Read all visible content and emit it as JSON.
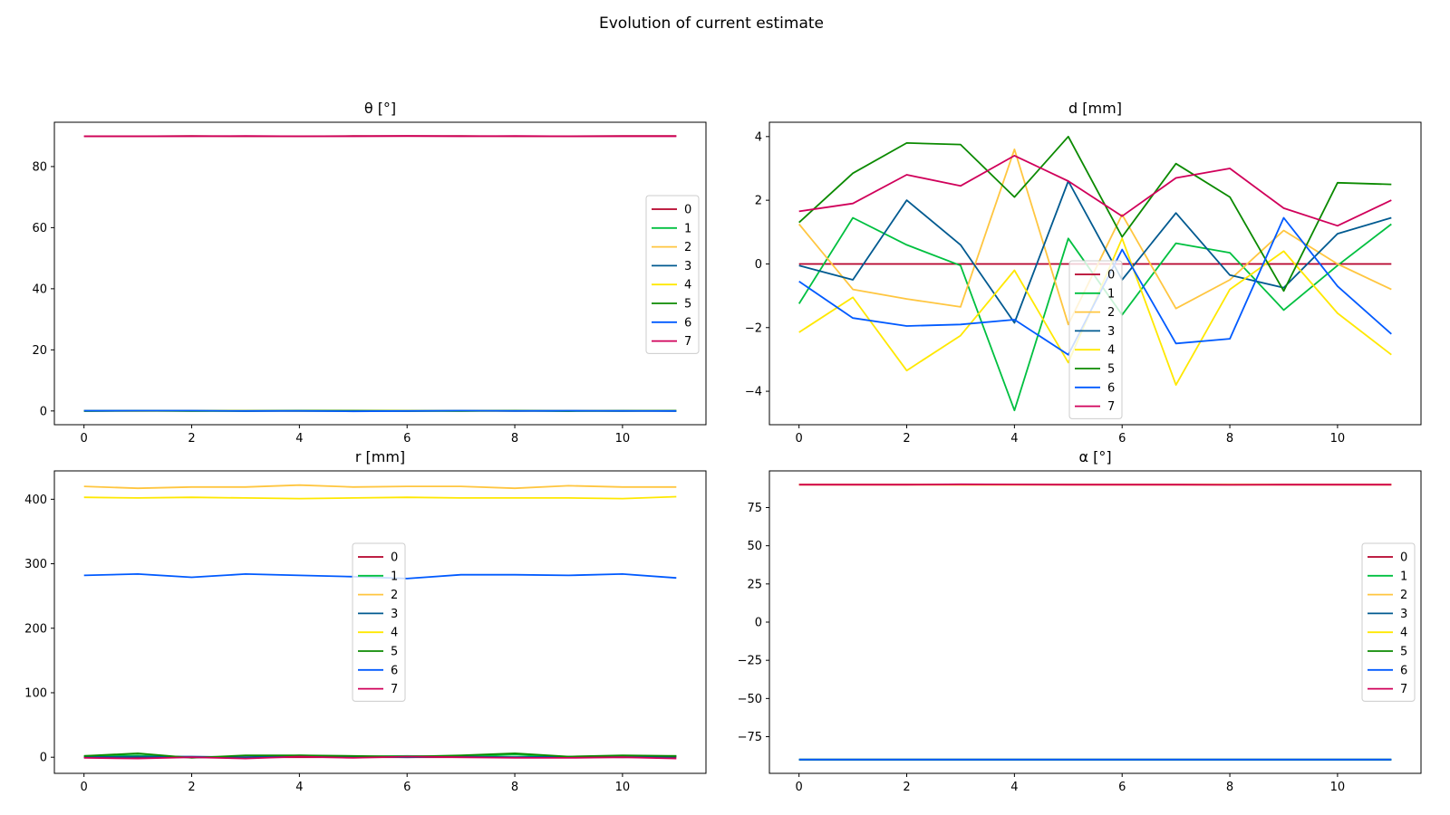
{
  "figure": {
    "title": "Evolution of current estimate"
  },
  "series_colors": {
    "0": "#b5002a",
    "1": "#00c040",
    "2": "#ffc640",
    "3": "#005a90",
    "4": "#ffe800",
    "5": "#0b8a00",
    "6": "#005aff",
    "7": "#d0005a"
  },
  "chart_data": [
    {
      "type": "line",
      "title": "θ [°]",
      "x": [
        0,
        1,
        2,
        3,
        4,
        5,
        6,
        7,
        8,
        9,
        10,
        11
      ],
      "xlim": [
        -0.55,
        11.55
      ],
      "ylim": [
        -4.5,
        94.5
      ],
      "xticks": [
        0,
        2,
        4,
        6,
        8,
        10
      ],
      "yticks": [
        0,
        20,
        40,
        60,
        80
      ],
      "legend": "center-right",
      "series": [
        {
          "name": "0",
          "values": [
            89.9,
            89.9,
            90.0,
            89.9,
            89.9,
            90.0,
            90.0,
            90.0,
            89.9,
            89.9,
            90.0,
            90.0
          ]
        },
        {
          "name": "1",
          "values": [
            0.1,
            0.1,
            0.0,
            0.1,
            0.0,
            0.0,
            0.1,
            0.0,
            0.1,
            0.0,
            0.1,
            0.0
          ]
        },
        {
          "name": "2",
          "values": [
            0.0,
            0.1,
            0.1,
            0.0,
            0.0,
            0.1,
            0.0,
            0.1,
            0.0,
            0.1,
            0.0,
            0.0
          ]
        },
        {
          "name": "3",
          "values": [
            0.0,
            0.0,
            0.1,
            0.0,
            0.1,
            0.0,
            0.0,
            0.1,
            0.0,
            0.0,
            0.1,
            0.0
          ]
        },
        {
          "name": "4",
          "values": [
            0.1,
            0.0,
            0.0,
            0.1,
            0.0,
            0.0,
            0.1,
            0.0,
            0.0,
            0.1,
            0.0,
            0.1
          ]
        },
        {
          "name": "5",
          "values": [
            0.0,
            0.1,
            0.0,
            0.0,
            0.1,
            0.1,
            0.0,
            0.0,
            0.1,
            0.0,
            0.0,
            0.1
          ]
        },
        {
          "name": "6",
          "values": [
            0.1,
            0.1,
            0.1,
            0.0,
            0.0,
            -0.1,
            0.0,
            0.1,
            0.0,
            0.1,
            0.0,
            0.0
          ]
        },
        {
          "name": "7",
          "values": [
            89.9,
            89.9,
            89.9,
            90.0,
            89.9,
            89.9,
            90.0,
            89.9,
            90.0,
            89.9,
            89.9,
            89.9
          ]
        }
      ]
    },
    {
      "type": "line",
      "title": "d [mm]",
      "x": [
        0,
        1,
        2,
        3,
        4,
        5,
        6,
        7,
        8,
        9,
        10,
        11
      ],
      "xlim": [
        -0.55,
        11.55
      ],
      "ylim": [
        -5.05,
        4.45
      ],
      "xticks": [
        0,
        2,
        4,
        6,
        8,
        10
      ],
      "yticks": [
        -4,
        -2,
        0,
        2,
        4
      ],
      "legend": "center",
      "series": [
        {
          "name": "0",
          "values": [
            0,
            0,
            0,
            0,
            0,
            0,
            0,
            0,
            0,
            0,
            0,
            0
          ]
        },
        {
          "name": "1",
          "values": [
            -1.25,
            1.45,
            0.6,
            -0.05,
            -4.6,
            0.8,
            -1.6,
            0.65,
            0.35,
            -1.45,
            -0.05,
            1.25
          ]
        },
        {
          "name": "2",
          "values": [
            1.25,
            -0.8,
            -1.1,
            -1.35,
            3.6,
            -1.9,
            1.55,
            -1.4,
            -0.5,
            1.05,
            0.0,
            -0.8
          ]
        },
        {
          "name": "3",
          "values": [
            -0.05,
            -0.5,
            2.0,
            0.6,
            -1.85,
            2.6,
            -0.5,
            1.6,
            -0.35,
            -0.75,
            0.95,
            1.45
          ]
        },
        {
          "name": "4",
          "values": [
            -2.15,
            -1.05,
            -3.35,
            -2.25,
            -0.2,
            -3.1,
            0.8,
            -3.8,
            -0.8,
            0.4,
            -1.55,
            -2.85
          ]
        },
        {
          "name": "5",
          "values": [
            1.3,
            2.85,
            3.8,
            3.75,
            2.1,
            4.0,
            0.85,
            3.15,
            2.1,
            -0.85,
            2.55,
            2.5
          ]
        },
        {
          "name": "6",
          "values": [
            -0.55,
            -1.7,
            -1.95,
            -1.9,
            -1.75,
            -2.85,
            0.45,
            -2.5,
            -2.35,
            1.45,
            -0.7,
            -2.2
          ]
        },
        {
          "name": "7",
          "values": [
            1.65,
            1.9,
            2.8,
            2.45,
            3.4,
            2.6,
            1.5,
            2.7,
            3.0,
            1.75,
            1.2,
            2.0
          ]
        }
      ]
    },
    {
      "type": "line",
      "title": "r [mm]",
      "x": [
        0,
        1,
        2,
        3,
        4,
        5,
        6,
        7,
        8,
        9,
        10,
        11
      ],
      "xlim": [
        -0.55,
        11.55
      ],
      "ylim": [
        -25,
        444
      ],
      "xticks": [
        0,
        2,
        4,
        6,
        8,
        10
      ],
      "yticks": [
        0,
        100,
        200,
        300,
        400
      ],
      "legend": "center",
      "series": [
        {
          "name": "0",
          "values": [
            0,
            0,
            0,
            0,
            0,
            0,
            0,
            0,
            0,
            0,
            0,
            0
          ]
        },
        {
          "name": "1",
          "values": [
            2,
            3,
            0,
            -1,
            3,
            1,
            2,
            1,
            4,
            0,
            1,
            2
          ]
        },
        {
          "name": "2",
          "values": [
            420,
            417,
            419,
            419,
            422,
            419,
            420,
            420,
            417,
            421,
            419,
            419
          ]
        },
        {
          "name": "3",
          "values": [
            0,
            1,
            1,
            0,
            2,
            1,
            0,
            1,
            0,
            1,
            0,
            1
          ]
        },
        {
          "name": "4",
          "values": [
            403,
            402,
            403,
            402,
            401,
            402,
            403,
            402,
            402,
            402,
            401,
            404
          ]
        },
        {
          "name": "5",
          "values": [
            2,
            6,
            -1,
            3,
            3,
            2,
            1,
            3,
            6,
            1,
            3,
            2
          ]
        },
        {
          "name": "6",
          "values": [
            282,
            284,
            279,
            284,
            282,
            280,
            277,
            283,
            283,
            282,
            284,
            278
          ]
        },
        {
          "name": "7",
          "values": [
            -1,
            -2,
            0,
            -2,
            1,
            -1,
            1,
            0,
            -1,
            -1,
            0,
            -2
          ]
        }
      ]
    },
    {
      "type": "line",
      "title": "α [°]",
      "x": [
        0,
        1,
        2,
        3,
        4,
        5,
        6,
        7,
        8,
        9,
        10,
        11
      ],
      "xlim": [
        -0.55,
        11.55
      ],
      "ylim": [
        -99,
        99
      ],
      "xticks": [
        0,
        2,
        4,
        6,
        8,
        10
      ],
      "yticks": [
        -75,
        -50,
        -25,
        0,
        25,
        50,
        75
      ],
      "legend": "center-right",
      "series": [
        {
          "name": "0",
          "values": [
            90,
            90,
            90,
            90,
            90,
            90,
            90,
            90,
            90,
            90,
            90,
            90
          ]
        },
        {
          "name": "1",
          "values": [
            -90,
            -90,
            -90,
            -90,
            -90,
            -90,
            -90,
            -90,
            -90,
            -90,
            -90,
            -90
          ]
        },
        {
          "name": "2",
          "values": [
            90,
            90,
            90,
            90,
            90,
            90,
            90,
            90,
            90,
            90,
            90,
            90
          ]
        },
        {
          "name": "3",
          "values": [
            -90,
            -90,
            -90,
            -90,
            -90,
            -90,
            -90,
            -90,
            -90,
            -90,
            -90,
            -90
          ]
        },
        {
          "name": "4",
          "values": [
            90,
            90,
            90,
            90,
            90,
            90,
            90,
            90,
            90,
            90,
            90,
            90
          ]
        },
        {
          "name": "5",
          "values": [
            -90,
            -90,
            -90,
            -90,
            -90,
            -90,
            -90,
            -90,
            -90,
            -90,
            -90,
            -90
          ]
        },
        {
          "name": "6",
          "values": [
            -90,
            -90,
            -90,
            -90,
            -90,
            -90,
            -90,
            -90,
            -90,
            -90,
            -90,
            -90
          ]
        },
        {
          "name": "7",
          "values": [
            90,
            90,
            90,
            90.2,
            90.1,
            90,
            90,
            90,
            89.9,
            90,
            90,
            90
          ]
        }
      ]
    }
  ]
}
